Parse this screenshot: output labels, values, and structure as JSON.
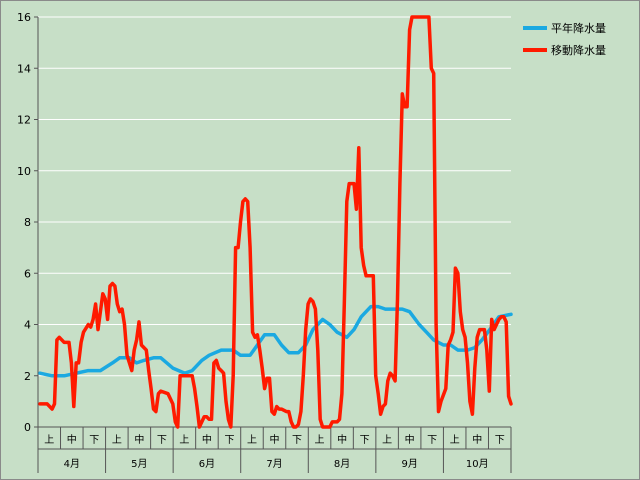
{
  "chart_data": {
    "type": "line",
    "title": "",
    "xlabel": "",
    "ylabel": "",
    "ylim": [
      0,
      16
    ],
    "yticks": [
      0,
      2,
      4,
      6,
      8,
      10,
      12,
      14,
      16
    ],
    "grid": "horizontal",
    "legend_position": "top-right",
    "months": [
      "4月",
      "5月",
      "6月",
      "7月",
      "8月",
      "9月",
      "10月"
    ],
    "dekads": [
      "上",
      "中",
      "下"
    ],
    "series": [
      {
        "name": "平年降水量",
        "color": "#1ba9e1",
        "points": [
          [
            0.0,
            2.1
          ],
          [
            0.5,
            2.0
          ],
          [
            1.0,
            2.0
          ],
          [
            1.5,
            2.1
          ],
          [
            2.0,
            2.2
          ],
          [
            2.5,
            2.2
          ],
          [
            3.0,
            2.5
          ],
          [
            3.3,
            2.7
          ],
          [
            3.7,
            2.7
          ],
          [
            4.0,
            2.5
          ],
          [
            4.3,
            2.6
          ],
          [
            4.7,
            2.7
          ],
          [
            5.0,
            2.7
          ],
          [
            5.5,
            2.3
          ],
          [
            6.0,
            2.1
          ],
          [
            6.3,
            2.2
          ],
          [
            6.7,
            2.6
          ],
          [
            7.0,
            2.8
          ],
          [
            7.5,
            3.0
          ],
          [
            8.0,
            3.0
          ],
          [
            8.3,
            2.8
          ],
          [
            8.7,
            2.8
          ],
          [
            9.0,
            3.2
          ],
          [
            9.3,
            3.6
          ],
          [
            9.7,
            3.6
          ],
          [
            10.0,
            3.2
          ],
          [
            10.3,
            2.9
          ],
          [
            10.7,
            2.9
          ],
          [
            11.0,
            3.2
          ],
          [
            11.3,
            3.8
          ],
          [
            11.7,
            4.2
          ],
          [
            12.0,
            4.0
          ],
          [
            12.3,
            3.7
          ],
          [
            12.7,
            3.5
          ],
          [
            13.0,
            3.8
          ],
          [
            13.3,
            4.3
          ],
          [
            13.7,
            4.7
          ],
          [
            14.0,
            4.7
          ],
          [
            14.3,
            4.6
          ],
          [
            14.7,
            4.6
          ],
          [
            15.0,
            4.6
          ],
          [
            15.3,
            4.5
          ],
          [
            15.7,
            4.0
          ],
          [
            16.0,
            3.7
          ],
          [
            16.3,
            3.4
          ],
          [
            16.7,
            3.2
          ],
          [
            17.0,
            3.2
          ],
          [
            17.3,
            3.0
          ],
          [
            17.7,
            3.0
          ],
          [
            18.0,
            3.1
          ],
          [
            18.3,
            3.4
          ],
          [
            18.7,
            3.9
          ],
          [
            19.0,
            4.3
          ],
          [
            19.5,
            4.4
          ]
        ]
      },
      {
        "name": "移動降水量",
        "color": "#ff1a00",
        "points": [
          [
            0.0,
            0.9
          ],
          [
            0.3,
            0.9
          ],
          [
            0.5,
            0.7
          ],
          [
            0.6,
            0.9
          ],
          [
            0.7,
            3.4
          ],
          [
            0.8,
            3.5
          ],
          [
            1.0,
            3.3
          ],
          [
            1.2,
            3.3
          ],
          [
            1.3,
            2.5
          ],
          [
            1.4,
            0.8
          ],
          [
            1.5,
            2.5
          ],
          [
            1.6,
            2.5
          ],
          [
            1.7,
            3.3
          ],
          [
            1.8,
            3.7
          ],
          [
            2.0,
            4.0
          ],
          [
            2.1,
            3.9
          ],
          [
            2.2,
            4.2
          ],
          [
            2.3,
            4.8
          ],
          [
            2.4,
            3.8
          ],
          [
            2.5,
            4.5
          ],
          [
            2.6,
            5.2
          ],
          [
            2.7,
            5.0
          ],
          [
            2.8,
            4.2
          ],
          [
            2.9,
            5.5
          ],
          [
            3.0,
            5.6
          ],
          [
            3.1,
            5.5
          ],
          [
            3.2,
            4.8
          ],
          [
            3.3,
            4.5
          ],
          [
            3.4,
            4.6
          ],
          [
            3.5,
            4.0
          ],
          [
            3.6,
            2.8
          ],
          [
            3.7,
            2.5
          ],
          [
            3.8,
            2.2
          ],
          [
            3.9,
            3.0
          ],
          [
            4.0,
            3.4
          ],
          [
            4.1,
            4.1
          ],
          [
            4.2,
            3.2
          ],
          [
            4.4,
            3.0
          ],
          [
            4.5,
            2.2
          ],
          [
            4.6,
            1.5
          ],
          [
            4.7,
            0.7
          ],
          [
            4.8,
            0.6
          ],
          [
            4.9,
            1.3
          ],
          [
            5.0,
            1.4
          ],
          [
            5.3,
            1.3
          ],
          [
            5.5,
            0.9
          ],
          [
            5.6,
            0.2
          ],
          [
            5.7,
            0.0
          ],
          [
            5.8,
            2.0
          ],
          [
            6.0,
            2.0
          ],
          [
            6.3,
            2.0
          ],
          [
            6.4,
            1.5
          ],
          [
            6.5,
            0.8
          ],
          [
            6.6,
            0.0
          ],
          [
            6.7,
            0.2
          ],
          [
            6.8,
            0.4
          ],
          [
            6.9,
            0.4
          ],
          [
            7.0,
            0.3
          ],
          [
            7.1,
            0.3
          ],
          [
            7.2,
            2.5
          ],
          [
            7.3,
            2.6
          ],
          [
            7.4,
            2.3
          ],
          [
            7.5,
            2.2
          ],
          [
            7.6,
            2.1
          ],
          [
            7.7,
            1.0
          ],
          [
            7.8,
            0.3
          ],
          [
            7.9,
            0.0
          ],
          [
            8.0,
            2.0
          ],
          [
            8.1,
            7.0
          ],
          [
            8.2,
            7.0
          ],
          [
            8.3,
            8.0
          ],
          [
            8.4,
            8.8
          ],
          [
            8.5,
            8.9
          ],
          [
            8.6,
            8.8
          ],
          [
            8.7,
            7.0
          ],
          [
            8.8,
            3.7
          ],
          [
            8.9,
            3.5
          ],
          [
            9.0,
            3.6
          ],
          [
            9.1,
            3.0
          ],
          [
            9.2,
            2.3
          ],
          [
            9.3,
            1.5
          ],
          [
            9.4,
            1.9
          ],
          [
            9.5,
            1.9
          ],
          [
            9.6,
            0.6
          ],
          [
            9.7,
            0.5
          ],
          [
            9.8,
            0.8
          ],
          [
            9.9,
            0.7
          ],
          [
            10.0,
            0.7
          ],
          [
            10.2,
            0.6
          ],
          [
            10.3,
            0.6
          ],
          [
            10.4,
            0.2
          ],
          [
            10.5,
            0.0
          ],
          [
            10.6,
            0.0
          ],
          [
            10.7,
            0.1
          ],
          [
            10.8,
            0.6
          ],
          [
            10.9,
            2.0
          ],
          [
            11.0,
            3.8
          ],
          [
            11.1,
            4.8
          ],
          [
            11.2,
            5.0
          ],
          [
            11.3,
            4.9
          ],
          [
            11.4,
            4.6
          ],
          [
            11.5,
            3.0
          ],
          [
            11.6,
            0.3
          ],
          [
            11.7,
            0.0
          ],
          [
            12.0,
            0.0
          ],
          [
            12.1,
            0.2
          ],
          [
            12.3,
            0.2
          ],
          [
            12.4,
            0.3
          ],
          [
            12.5,
            1.3
          ],
          [
            12.6,
            4.8
          ],
          [
            12.7,
            8.8
          ],
          [
            12.8,
            9.5
          ],
          [
            13.0,
            9.5
          ],
          [
            13.1,
            8.5
          ],
          [
            13.2,
            10.9
          ],
          [
            13.3,
            7.0
          ],
          [
            13.4,
            6.3
          ],
          [
            13.5,
            5.9
          ],
          [
            13.8,
            5.9
          ],
          [
            13.9,
            2.0
          ],
          [
            14.0,
            1.3
          ],
          [
            14.1,
            0.5
          ],
          [
            14.2,
            0.8
          ],
          [
            14.3,
            0.9
          ],
          [
            14.4,
            1.8
          ],
          [
            14.5,
            2.1
          ],
          [
            14.6,
            2.0
          ],
          [
            14.7,
            1.8
          ],
          [
            14.8,
            5.0
          ],
          [
            14.9,
            9.5
          ],
          [
            15.0,
            13.0
          ],
          [
            15.1,
            12.5
          ],
          [
            15.2,
            12.5
          ],
          [
            15.3,
            15.5
          ],
          [
            15.4,
            16.0
          ],
          [
            15.5,
            16.0
          ],
          [
            15.6,
            16.0
          ],
          [
            16.0,
            16.0
          ],
          [
            16.1,
            16.0
          ],
          [
            16.2,
            14.0
          ],
          [
            16.3,
            13.8
          ],
          [
            16.4,
            4.0
          ],
          [
            16.5,
            0.6
          ],
          [
            16.6,
            1.0
          ],
          [
            16.8,
            1.5
          ],
          [
            16.9,
            3.2
          ],
          [
            17.0,
            3.4
          ],
          [
            17.1,
            3.7
          ],
          [
            17.2,
            6.2
          ],
          [
            17.3,
            6.0
          ],
          [
            17.4,
            4.5
          ],
          [
            17.5,
            3.8
          ],
          [
            17.6,
            3.5
          ],
          [
            17.7,
            2.5
          ],
          [
            17.8,
            1.0
          ],
          [
            17.9,
            0.5
          ],
          [
            18.0,
            2.3
          ],
          [
            18.1,
            3.5
          ],
          [
            18.2,
            3.8
          ],
          [
            18.3,
            3.8
          ],
          [
            18.4,
            3.8
          ],
          [
            18.5,
            3.0
          ],
          [
            18.6,
            1.4
          ],
          [
            18.7,
            4.2
          ],
          [
            18.8,
            3.8
          ],
          [
            18.9,
            4.0
          ],
          [
            19.0,
            4.2
          ],
          [
            19.1,
            4.3
          ],
          [
            19.2,
            4.3
          ],
          [
            19.3,
            4.1
          ],
          [
            19.4,
            1.2
          ],
          [
            19.5,
            0.9
          ]
        ]
      }
    ]
  }
}
